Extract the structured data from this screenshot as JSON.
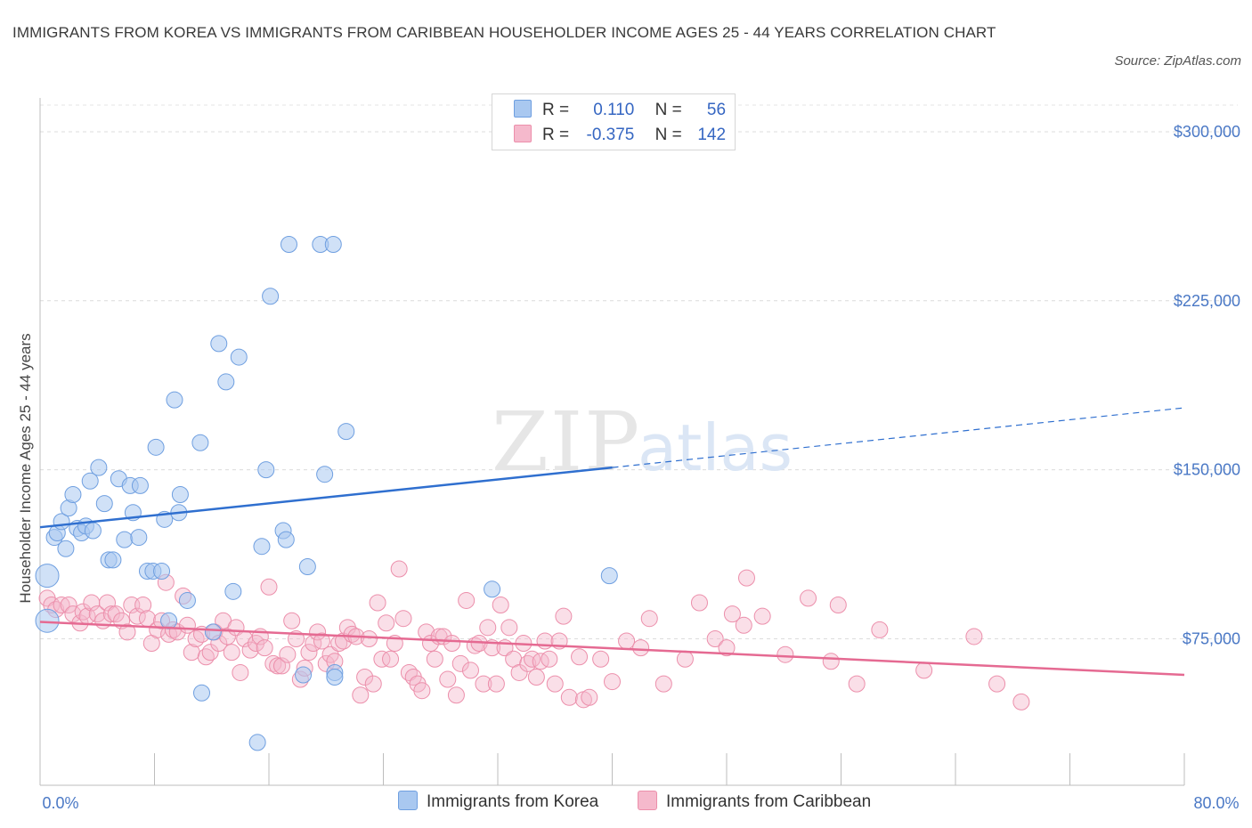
{
  "title": "IMMIGRANTS FROM KOREA VS IMMIGRANTS FROM CARIBBEAN HOUSEHOLDER INCOME AGES 25 - 44 YEARS CORRELATION CHART",
  "source": "Source: ZipAtlas.com",
  "colors": {
    "korea_fill": "#a9c8f0",
    "korea_stroke": "#6f9fe0",
    "korea_line": "#2f6fcf",
    "carib_fill": "#f5b9cc",
    "carib_stroke": "#ec8fab",
    "carib_line": "#e56a92",
    "tick_text": "#4a78c5"
  },
  "legend": {
    "korea": {
      "r_label": "R = ",
      "r_value": "0.110",
      "n_label": "N = ",
      "n_value": "56"
    },
    "carib": {
      "r_label": "R = ",
      "r_value": "-0.375",
      "n_label": "N = ",
      "n_value": "142"
    }
  },
  "bottom_legend": {
    "korea": "Immigrants from Korea",
    "carib": "Immigrants from Caribbean"
  },
  "chart_data": {
    "type": "scatter",
    "xlabel": "",
    "ylabel": "Householder Income Ages 25 - 44 years",
    "xlim": [
      0,
      80
    ],
    "ylim": [
      10000,
      315000
    ],
    "x_tick_labels": [
      "0.0%",
      "80.0%"
    ],
    "y_ticks": [
      75000,
      150000,
      225000,
      300000
    ],
    "y_tick_labels": [
      "$75,000",
      "$150,000",
      "$225,000",
      "$300,000"
    ],
    "grid": true,
    "legend_position": "top-center",
    "series": [
      {
        "name": "Immigrants from Korea",
        "trend": {
          "x0": 0,
          "y0": 124500,
          "x1": 80,
          "y1": 177500,
          "solid_until": 40
        },
        "points": [
          [
            0.5,
            103000
          ],
          [
            0.5,
            83000
          ],
          [
            1,
            120000
          ],
          [
            1.2,
            122000
          ],
          [
            1.5,
            127000
          ],
          [
            1.8,
            115000
          ],
          [
            2,
            133000
          ],
          [
            2.3,
            139000
          ],
          [
            2.6,
            124000
          ],
          [
            2.9,
            122000
          ],
          [
            3.2,
            125000
          ],
          [
            3.5,
            145000
          ],
          [
            3.7,
            123000
          ],
          [
            4.1,
            151000
          ],
          [
            4.5,
            135000
          ],
          [
            4.8,
            110000
          ],
          [
            5.1,
            110000
          ],
          [
            5.5,
            146000
          ],
          [
            5.9,
            119000
          ],
          [
            6.3,
            143000
          ],
          [
            6.5,
            131000
          ],
          [
            6.9,
            120000
          ],
          [
            7.0,
            143000
          ],
          [
            7.5,
            105000
          ],
          [
            7.9,
            105000
          ],
          [
            8.1,
            160000
          ],
          [
            8.5,
            105000
          ],
          [
            8.7,
            128000
          ],
          [
            9.0,
            83000
          ],
          [
            9.4,
            181000
          ],
          [
            9.7,
            131000
          ],
          [
            9.8,
            139000
          ],
          [
            10.3,
            92000
          ],
          [
            11.2,
            162000
          ],
          [
            11.3,
            51000
          ],
          [
            12.1,
            78000
          ],
          [
            12.5,
            206000
          ],
          [
            13.0,
            189000
          ],
          [
            13.5,
            96000
          ],
          [
            13.9,
            200000
          ],
          [
            15.2,
            29000
          ],
          [
            15.5,
            116000
          ],
          [
            15.8,
            150000
          ],
          [
            16.1,
            227000
          ],
          [
            17.0,
            123000
          ],
          [
            17.2,
            119000
          ],
          [
            17.4,
            250000
          ],
          [
            18.4,
            59000
          ],
          [
            18.7,
            107000
          ],
          [
            19.6,
            250000
          ],
          [
            19.9,
            148000
          ],
          [
            20.5,
            250000
          ],
          [
            20.6,
            60000
          ],
          [
            20.6,
            58000
          ],
          [
            21.4,
            167000
          ],
          [
            31.6,
            97000
          ],
          [
            39.8,
            103000
          ]
        ]
      },
      {
        "name": "Immigrants from Caribbean",
        "trend": {
          "x0": 0,
          "y0": 82500,
          "x1": 80,
          "y1": 59000
        },
        "points": [
          [
            0.5,
            93000
          ],
          [
            0.8,
            90000
          ],
          [
            1.1,
            88000
          ],
          [
            1.5,
            90000
          ],
          [
            2.0,
            90000
          ],
          [
            2.3,
            86000
          ],
          [
            2.8,
            82000
          ],
          [
            3.0,
            87000
          ],
          [
            3.3,
            85000
          ],
          [
            3.6,
            91000
          ],
          [
            4.0,
            86000
          ],
          [
            4.4,
            83000
          ],
          [
            4.7,
            91000
          ],
          [
            5.0,
            86000
          ],
          [
            5.3,
            86000
          ],
          [
            5.7,
            83000
          ],
          [
            6.1,
            78000
          ],
          [
            6.4,
            90000
          ],
          [
            6.8,
            85000
          ],
          [
            7.2,
            90000
          ],
          [
            7.5,
            84000
          ],
          [
            7.8,
            73000
          ],
          [
            8.2,
            79000
          ],
          [
            8.5,
            83000
          ],
          [
            8.8,
            100000
          ],
          [
            9.0,
            77000
          ],
          [
            9.3,
            79000
          ],
          [
            9.6,
            78000
          ],
          [
            10.0,
            94000
          ],
          [
            10.3,
            81000
          ],
          [
            10.6,
            69000
          ],
          [
            10.9,
            75000
          ],
          [
            11.3,
            77000
          ],
          [
            11.6,
            67000
          ],
          [
            11.9,
            69000
          ],
          [
            12.2,
            78000
          ],
          [
            12.5,
            73000
          ],
          [
            12.8,
            83000
          ],
          [
            13.1,
            76000
          ],
          [
            13.4,
            69000
          ],
          [
            13.7,
            80000
          ],
          [
            14.0,
            60000
          ],
          [
            14.3,
            75000
          ],
          [
            14.7,
            70000
          ],
          [
            15.1,
            73000
          ],
          [
            15.4,
            76000
          ],
          [
            15.7,
            71000
          ],
          [
            16.0,
            98000
          ],
          [
            16.3,
            64000
          ],
          [
            16.6,
            63000
          ],
          [
            16.9,
            63000
          ],
          [
            17.3,
            68000
          ],
          [
            17.6,
            83000
          ],
          [
            17.9,
            75000
          ],
          [
            18.2,
            57000
          ],
          [
            18.5,
            62000
          ],
          [
            18.8,
            69000
          ],
          [
            19.1,
            73000
          ],
          [
            19.4,
            78000
          ],
          [
            19.7,
            74000
          ],
          [
            20.0,
            64000
          ],
          [
            20.3,
            68000
          ],
          [
            20.6,
            65000
          ],
          [
            20.9,
            73000
          ],
          [
            21.2,
            74000
          ],
          [
            21.5,
            80000
          ],
          [
            21.8,
            77000
          ],
          [
            22.1,
            76000
          ],
          [
            22.4,
            50000
          ],
          [
            22.7,
            58000
          ],
          [
            23.0,
            75000
          ],
          [
            23.3,
            55000
          ],
          [
            23.6,
            91000
          ],
          [
            23.9,
            66000
          ],
          [
            24.2,
            82000
          ],
          [
            24.5,
            66000
          ],
          [
            24.8,
            73000
          ],
          [
            25.1,
            106000
          ],
          [
            25.4,
            84000
          ],
          [
            25.8,
            60000
          ],
          [
            26.1,
            58000
          ],
          [
            26.4,
            55000
          ],
          [
            26.7,
            52000
          ],
          [
            27.0,
            78000
          ],
          [
            27.3,
            73000
          ],
          [
            27.6,
            66000
          ],
          [
            27.9,
            76000
          ],
          [
            28.2,
            76000
          ],
          [
            28.5,
            57000
          ],
          [
            28.8,
            73000
          ],
          [
            29.1,
            50000
          ],
          [
            29.4,
            64000
          ],
          [
            29.8,
            92000
          ],
          [
            30.1,
            61000
          ],
          [
            30.4,
            72000
          ],
          [
            30.7,
            73000
          ],
          [
            31.0,
            55000
          ],
          [
            31.3,
            80000
          ],
          [
            31.6,
            71000
          ],
          [
            31.9,
            55000
          ],
          [
            32.2,
            90000
          ],
          [
            32.5,
            71000
          ],
          [
            32.8,
            80000
          ],
          [
            33.1,
            66000
          ],
          [
            33.5,
            60000
          ],
          [
            33.8,
            73000
          ],
          [
            34.1,
            64000
          ],
          [
            34.4,
            66000
          ],
          [
            34.7,
            58000
          ],
          [
            35.0,
            65000
          ],
          [
            35.3,
            74000
          ],
          [
            35.6,
            66000
          ],
          [
            36.0,
            55000
          ],
          [
            36.3,
            74000
          ],
          [
            36.6,
            85000
          ],
          [
            37.0,
            49000
          ],
          [
            37.7,
            67000
          ],
          [
            38.0,
            48000
          ],
          [
            38.4,
            49000
          ],
          [
            39.2,
            66000
          ],
          [
            40.0,
            56000
          ],
          [
            41.0,
            74000
          ],
          [
            42.0,
            71000
          ],
          [
            42.6,
            84000
          ],
          [
            43.6,
            55000
          ],
          [
            45.1,
            66000
          ],
          [
            46.1,
            91000
          ],
          [
            47.2,
            75000
          ],
          [
            48.0,
            71000
          ],
          [
            48.4,
            86000
          ],
          [
            49.2,
            81000
          ],
          [
            49.4,
            102000
          ],
          [
            50.5,
            85000
          ],
          [
            52.1,
            68000
          ],
          [
            53.7,
            93000
          ],
          [
            55.3,
            65000
          ],
          [
            55.8,
            90000
          ],
          [
            57.1,
            55000
          ],
          [
            58.7,
            79000
          ],
          [
            61.8,
            61000
          ],
          [
            65.3,
            76000
          ],
          [
            66.9,
            55000
          ],
          [
            68.6,
            47000
          ]
        ]
      }
    ]
  }
}
